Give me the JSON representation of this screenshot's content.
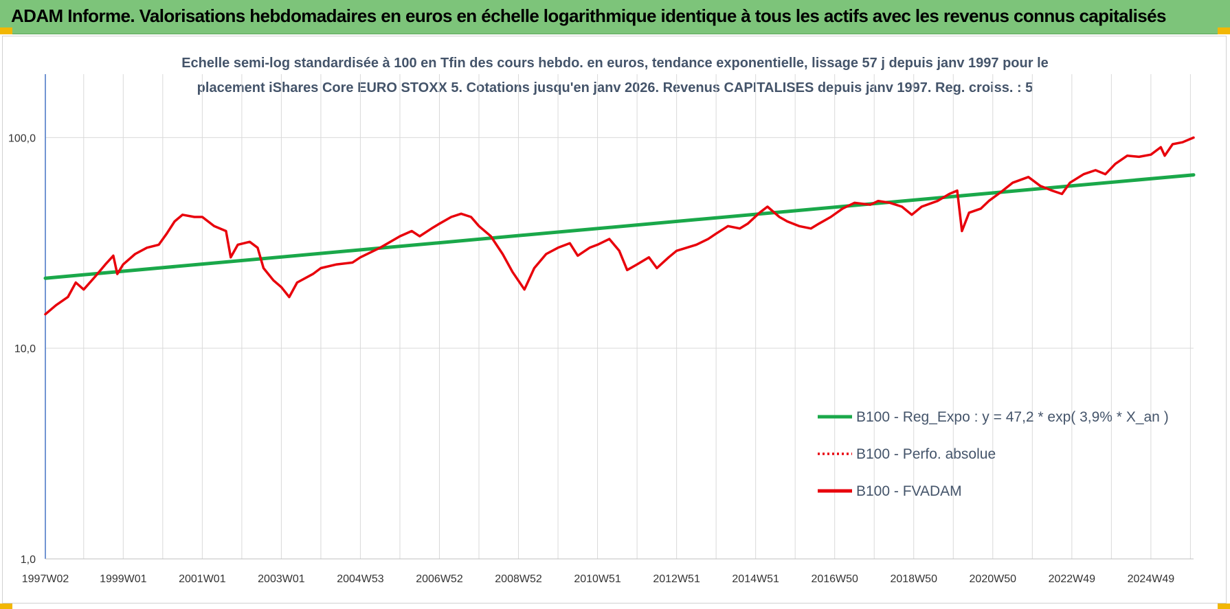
{
  "banner": {
    "title": "ADAM Informe. Valorisations hebdomadaires en euros en échelle logarithmique identique à tous les actifs avec les revenus connus capitalisés"
  },
  "colors": {
    "banner_bg": "#7dc47a",
    "corner": "#f2b705",
    "trend": "#1aa84a",
    "price": "#e8000b",
    "grid": "#d9d9d9",
    "axis": "#4472c4"
  },
  "chart_data": {
    "type": "line",
    "scale": "log",
    "subtitle_lines": [
      "Echelle semi-log standardisée à 100 en Tfin des cours hebdo. en euros, tendance exponentielle, lissage 57 j depuis janv 1997 pour le",
      "placement iShares Core EURO STOXX 5. Cotations jusqu'en janv 2026. Revenus CAPITALISES depuis janv 1997. Reg. croiss. : 5"
    ],
    "x_range": [
      1997.03,
      2026.08
    ],
    "ylim": [
      1,
      200
    ],
    "y_ticks": [
      {
        "value": 1,
        "label": "1,0"
      },
      {
        "value": 10,
        "label": "10,0"
      },
      {
        "value": 100,
        "label": "100,0"
      }
    ],
    "x_ticks": [
      {
        "year": 1997.03,
        "label": "1997W02"
      },
      {
        "year": 1999.0,
        "label": "1999W01"
      },
      {
        "year": 2001.0,
        "label": "2001W01"
      },
      {
        "year": 2003.0,
        "label": "2003W01"
      },
      {
        "year": 2005.0,
        "label": "2004W53"
      },
      {
        "year": 2007.0,
        "label": "2006W52"
      },
      {
        "year": 2009.0,
        "label": "2008W52"
      },
      {
        "year": 2011.0,
        "label": "2010W51"
      },
      {
        "year": 2013.0,
        "label": "2012W51"
      },
      {
        "year": 2015.0,
        "label": "2014W51"
      },
      {
        "year": 2017.0,
        "label": "2016W50"
      },
      {
        "year": 2019.0,
        "label": "2018W50"
      },
      {
        "year": 2021.0,
        "label": "2020W50"
      },
      {
        "year": 2023.0,
        "label": "2022W49"
      },
      {
        "year": 2025.0,
        "label": "2024W49"
      }
    ],
    "legend_position": "bottom-right",
    "legend": [
      {
        "label": "B100 - Reg_Expo : y = 47,2 * exp( 3,9% *  X_an )",
        "style": "solid",
        "color": "#1aa84a"
      },
      {
        "label": "B100 - Perfo. absolue",
        "style": "dotted",
        "color": "#e8000b"
      },
      {
        "label": "B100 - FVADAM",
        "style": "solid",
        "color": "#e8000b"
      }
    ],
    "series": [
      {
        "name": "B100 - Reg_Expo : y = 47,2 * exp( 3,9% *  X_an )",
        "color": "#1aa84a",
        "points": [
          [
            1997.03,
            21.5
          ],
          [
            2026.08,
            66.5
          ]
        ]
      },
      {
        "name": "B100 - FVADAM",
        "color": "#e8000b",
        "points": [
          [
            1997.03,
            14.5
          ],
          [
            1997.3,
            16.0
          ],
          [
            1997.6,
            17.5
          ],
          [
            1997.8,
            20.5
          ],
          [
            1998.0,
            19.0
          ],
          [
            1998.3,
            22.0
          ],
          [
            1998.55,
            25.0
          ],
          [
            1998.75,
            27.5
          ],
          [
            1998.85,
            22.5
          ],
          [
            1999.0,
            25.0
          ],
          [
            1999.3,
            28.0
          ],
          [
            1999.6,
            30.0
          ],
          [
            1999.9,
            31.0
          ],
          [
            2000.1,
            35.0
          ],
          [
            2000.3,
            40.0
          ],
          [
            2000.5,
            43.0
          ],
          [
            2000.8,
            42.0
          ],
          [
            2001.0,
            42.0
          ],
          [
            2001.3,
            38.0
          ],
          [
            2001.6,
            36.0
          ],
          [
            2001.72,
            27.0
          ],
          [
            2001.9,
            31.0
          ],
          [
            2002.2,
            32.0
          ],
          [
            2002.4,
            30.0
          ],
          [
            2002.55,
            24.0
          ],
          [
            2002.8,
            21.0
          ],
          [
            2003.0,
            19.5
          ],
          [
            2003.2,
            17.5
          ],
          [
            2003.4,
            20.5
          ],
          [
            2003.8,
            22.5
          ],
          [
            2004.0,
            24.0
          ],
          [
            2004.4,
            25.0
          ],
          [
            2004.8,
            25.5
          ],
          [
            2005.0,
            27.0
          ],
          [
            2005.5,
            30.0
          ],
          [
            2006.0,
            34.0
          ],
          [
            2006.3,
            36.0
          ],
          [
            2006.5,
            34.0
          ],
          [
            2006.8,
            37.0
          ],
          [
            2007.0,
            39.0
          ],
          [
            2007.3,
            42.0
          ],
          [
            2007.55,
            43.5
          ],
          [
            2007.8,
            42.0
          ],
          [
            2008.0,
            38.0
          ],
          [
            2008.3,
            34.0
          ],
          [
            2008.6,
            28.0
          ],
          [
            2008.85,
            23.0
          ],
          [
            2009.15,
            19.0
          ],
          [
            2009.4,
            24.0
          ],
          [
            2009.7,
            28.0
          ],
          [
            2010.0,
            30.0
          ],
          [
            2010.3,
            31.5
          ],
          [
            2010.5,
            27.5
          ],
          [
            2010.8,
            30.0
          ],
          [
            2011.0,
            31.0
          ],
          [
            2011.3,
            33.0
          ],
          [
            2011.55,
            29.0
          ],
          [
            2011.75,
            23.5
          ],
          [
            2012.0,
            25.0
          ],
          [
            2012.3,
            27.0
          ],
          [
            2012.5,
            24.0
          ],
          [
            2012.8,
            27.0
          ],
          [
            2013.0,
            29.0
          ],
          [
            2013.5,
            31.0
          ],
          [
            2013.8,
            33.0
          ],
          [
            2014.0,
            35.0
          ],
          [
            2014.3,
            38.0
          ],
          [
            2014.6,
            37.0
          ],
          [
            2014.8,
            39.0
          ],
          [
            2015.1,
            44.0
          ],
          [
            2015.3,
            47.0
          ],
          [
            2015.6,
            42.0
          ],
          [
            2015.8,
            40.0
          ],
          [
            2016.1,
            38.0
          ],
          [
            2016.4,
            37.0
          ],
          [
            2016.6,
            39.0
          ],
          [
            2016.9,
            42.0
          ],
          [
            2017.2,
            46.0
          ],
          [
            2017.5,
            49.0
          ],
          [
            2017.9,
            48.0
          ],
          [
            2018.1,
            50.0
          ],
          [
            2018.4,
            49.0
          ],
          [
            2018.7,
            47.0
          ],
          [
            2018.95,
            43.0
          ],
          [
            2019.2,
            47.0
          ],
          [
            2019.6,
            50.0
          ],
          [
            2019.9,
            54.0
          ],
          [
            2020.1,
            56.0
          ],
          [
            2020.22,
            36.0
          ],
          [
            2020.4,
            44.0
          ],
          [
            2020.7,
            46.0
          ],
          [
            2020.9,
            50.0
          ],
          [
            2021.2,
            55.0
          ],
          [
            2021.5,
            61.0
          ],
          [
            2021.9,
            65.0
          ],
          [
            2022.2,
            59.0
          ],
          [
            2022.5,
            56.0
          ],
          [
            2022.75,
            54.0
          ],
          [
            2022.95,
            61.0
          ],
          [
            2023.3,
            67.0
          ],
          [
            2023.6,
            70.0
          ],
          [
            2023.85,
            67.0
          ],
          [
            2024.1,
            75.0
          ],
          [
            2024.4,
            82.0
          ],
          [
            2024.7,
            81.0
          ],
          [
            2025.0,
            83.0
          ],
          [
            2025.25,
            90.0
          ],
          [
            2025.35,
            82.0
          ],
          [
            2025.55,
            93.0
          ],
          [
            2025.8,
            95.0
          ],
          [
            2026.08,
            100.0
          ]
        ]
      }
    ]
  }
}
